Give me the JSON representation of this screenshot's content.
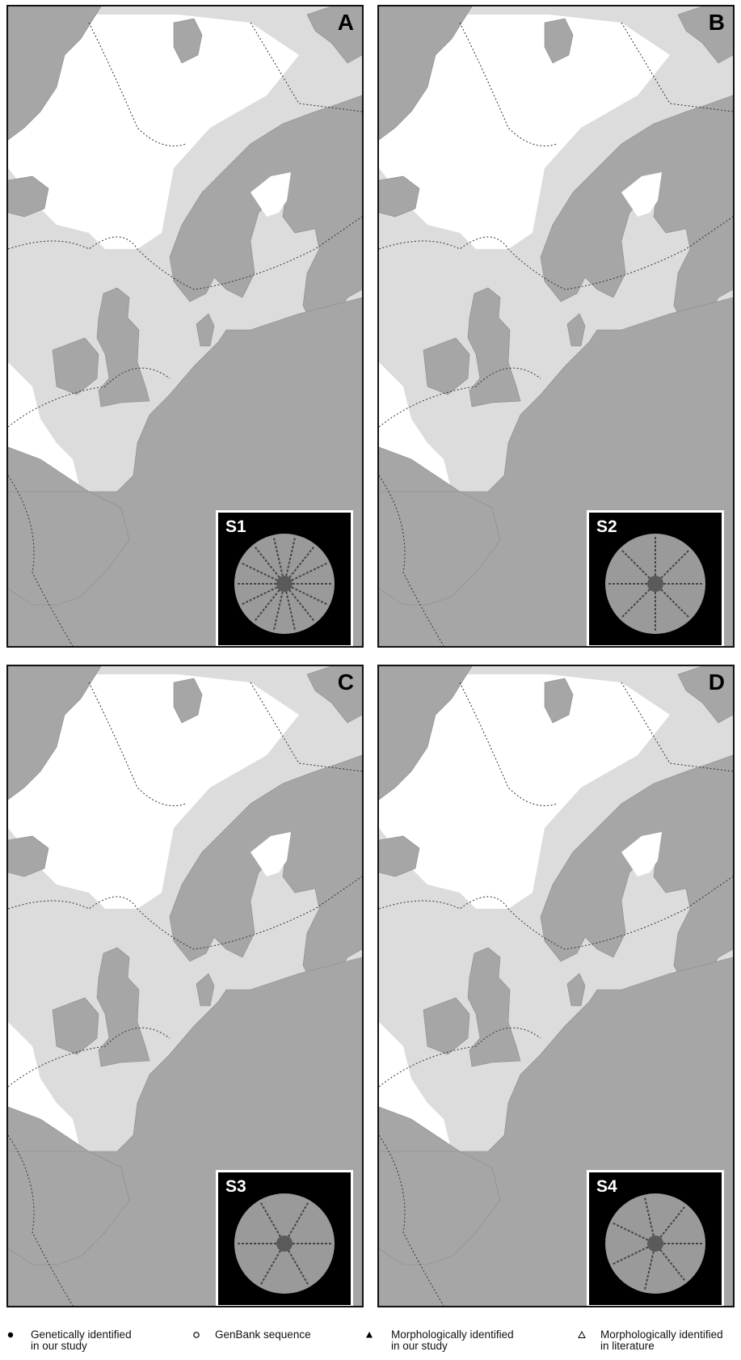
{
  "panels": [
    {
      "letter": "A",
      "inset_label": "S1"
    },
    {
      "letter": "B",
      "inset_label": "S2"
    },
    {
      "letter": "C",
      "inset_label": "S3"
    },
    {
      "letter": "D",
      "inset_label": "S4"
    }
  ],
  "legend": {
    "genetic": [
      "Genetically identified",
      "in our study"
    ],
    "genbank": [
      "GenBank sequence"
    ],
    "morph_study": [
      "Morphologically identified",
      "in our study"
    ],
    "morph_lit": [
      "Morphologically identified",
      "in literature"
    ]
  },
  "colors": {
    "land": "#a6a6a6",
    "shelf": "#dcdcdc",
    "deep": "#ffffff",
    "marker": "#000000"
  },
  "icons": {
    "genetic": "filled-circle-icon",
    "genbank": "open-circle-icon",
    "morph_study": "filled-triangle-icon",
    "morph_lit": "open-triangle-icon"
  }
}
